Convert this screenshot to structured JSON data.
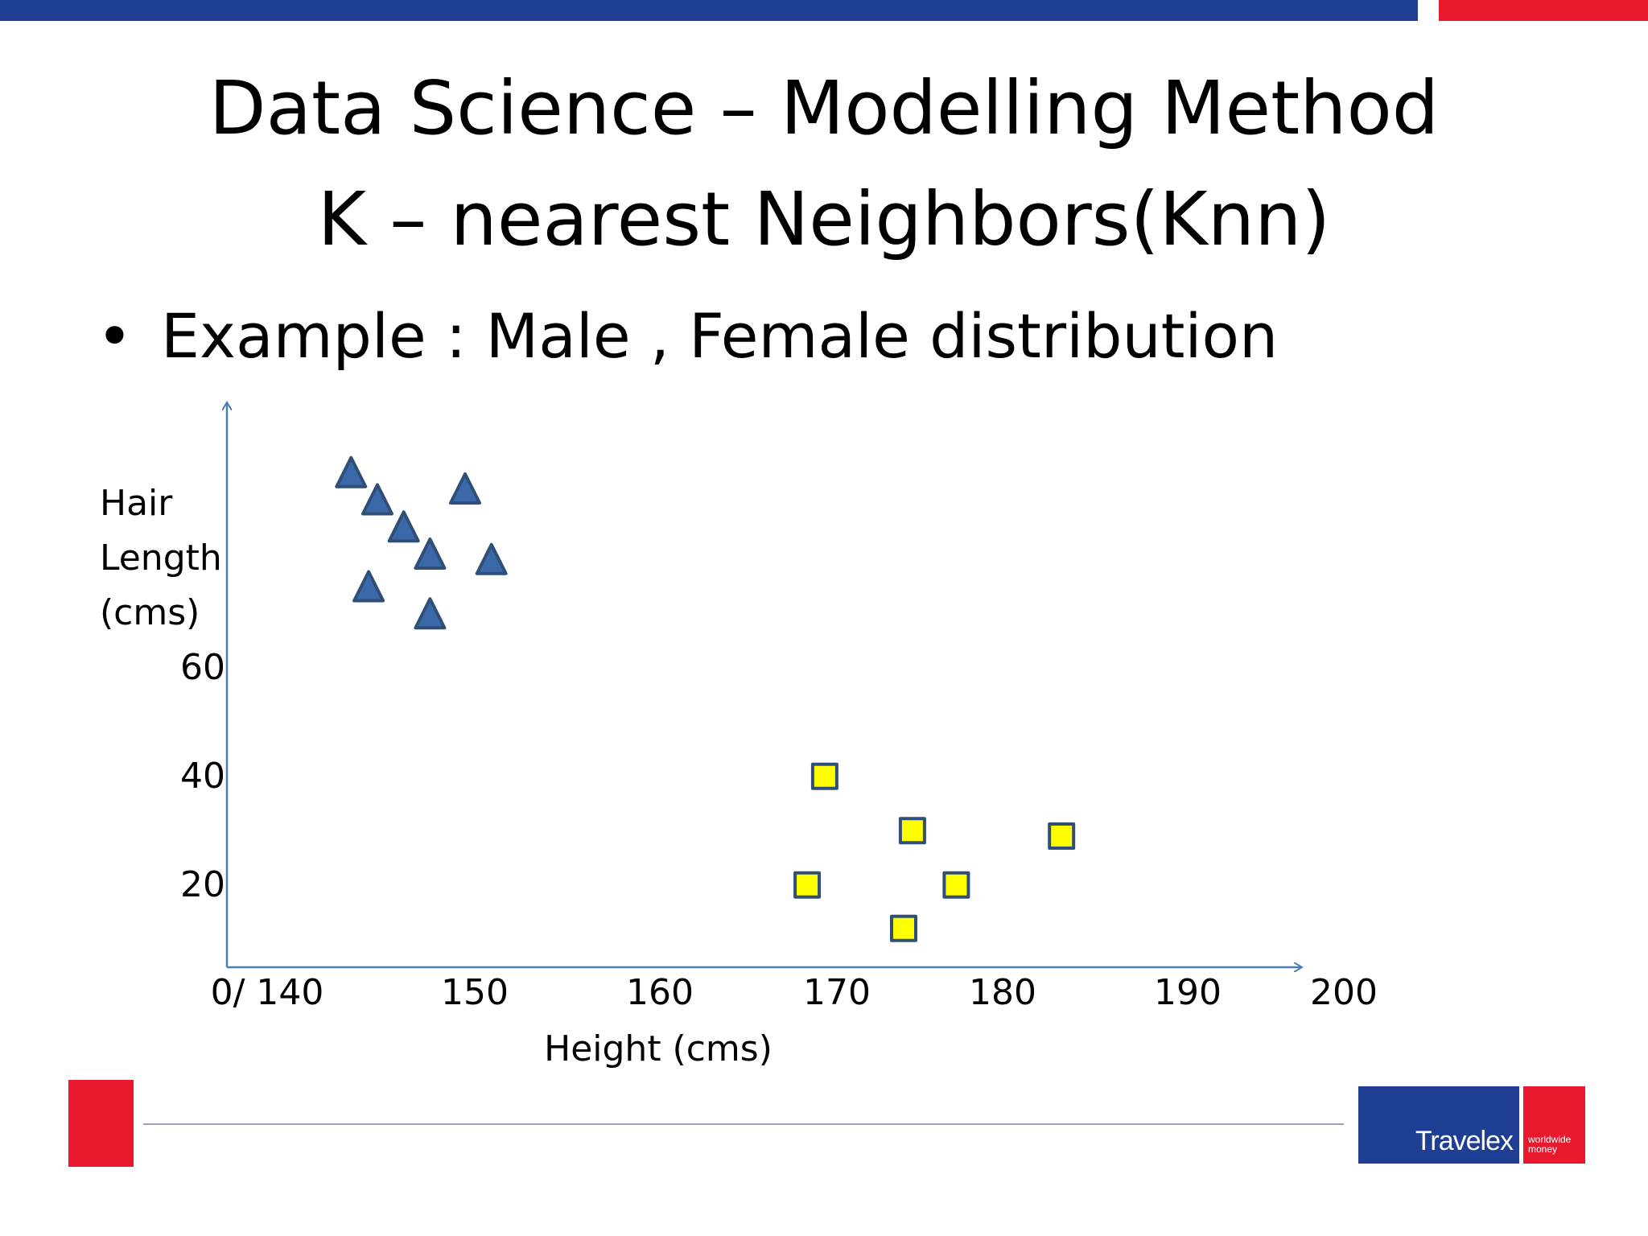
{
  "slide": {
    "title_line1": "Data Science – Modelling Method",
    "title_line2": "K – nearest Neighbors(Knn)",
    "bullet": "•",
    "bullet_text": "Example : Male , Female distribution",
    "logo_word": "Travelex",
    "logo_tagline": "worldwide money"
  },
  "chart_data": {
    "type": "scatter",
    "ylabel": [
      "Hair",
      "Length",
      "(cms)"
    ],
    "xlabel": "Height (cms)",
    "x_ticks": [
      "0/ 140",
      "150",
      "160",
      "170",
      "180",
      "190",
      "200"
    ],
    "y_ticks": [
      "20",
      "40",
      "60"
    ],
    "series": [
      {
        "marker": "triangle",
        "color": "#3b68a8",
        "points": [
          {
            "x": 143.5,
            "y": 91
          },
          {
            "x": 145.0,
            "y": 86
          },
          {
            "x": 146.5,
            "y": 81
          },
          {
            "x": 148.0,
            "y": 76
          },
          {
            "x": 144.5,
            "y": 70
          },
          {
            "x": 148.0,
            "y": 65
          },
          {
            "x": 150.0,
            "y": 88
          },
          {
            "x": 151.5,
            "y": 75
          }
        ]
      },
      {
        "marker": "square",
        "color": "#ffff00",
        "points": [
          {
            "x": 170.5,
            "y": 35
          },
          {
            "x": 169.5,
            "y": 15
          },
          {
            "x": 175.5,
            "y": 25
          },
          {
            "x": 175.0,
            "y": 7
          },
          {
            "x": 178.0,
            "y": 15
          },
          {
            "x": 184.0,
            "y": 24
          }
        ]
      }
    ]
  }
}
